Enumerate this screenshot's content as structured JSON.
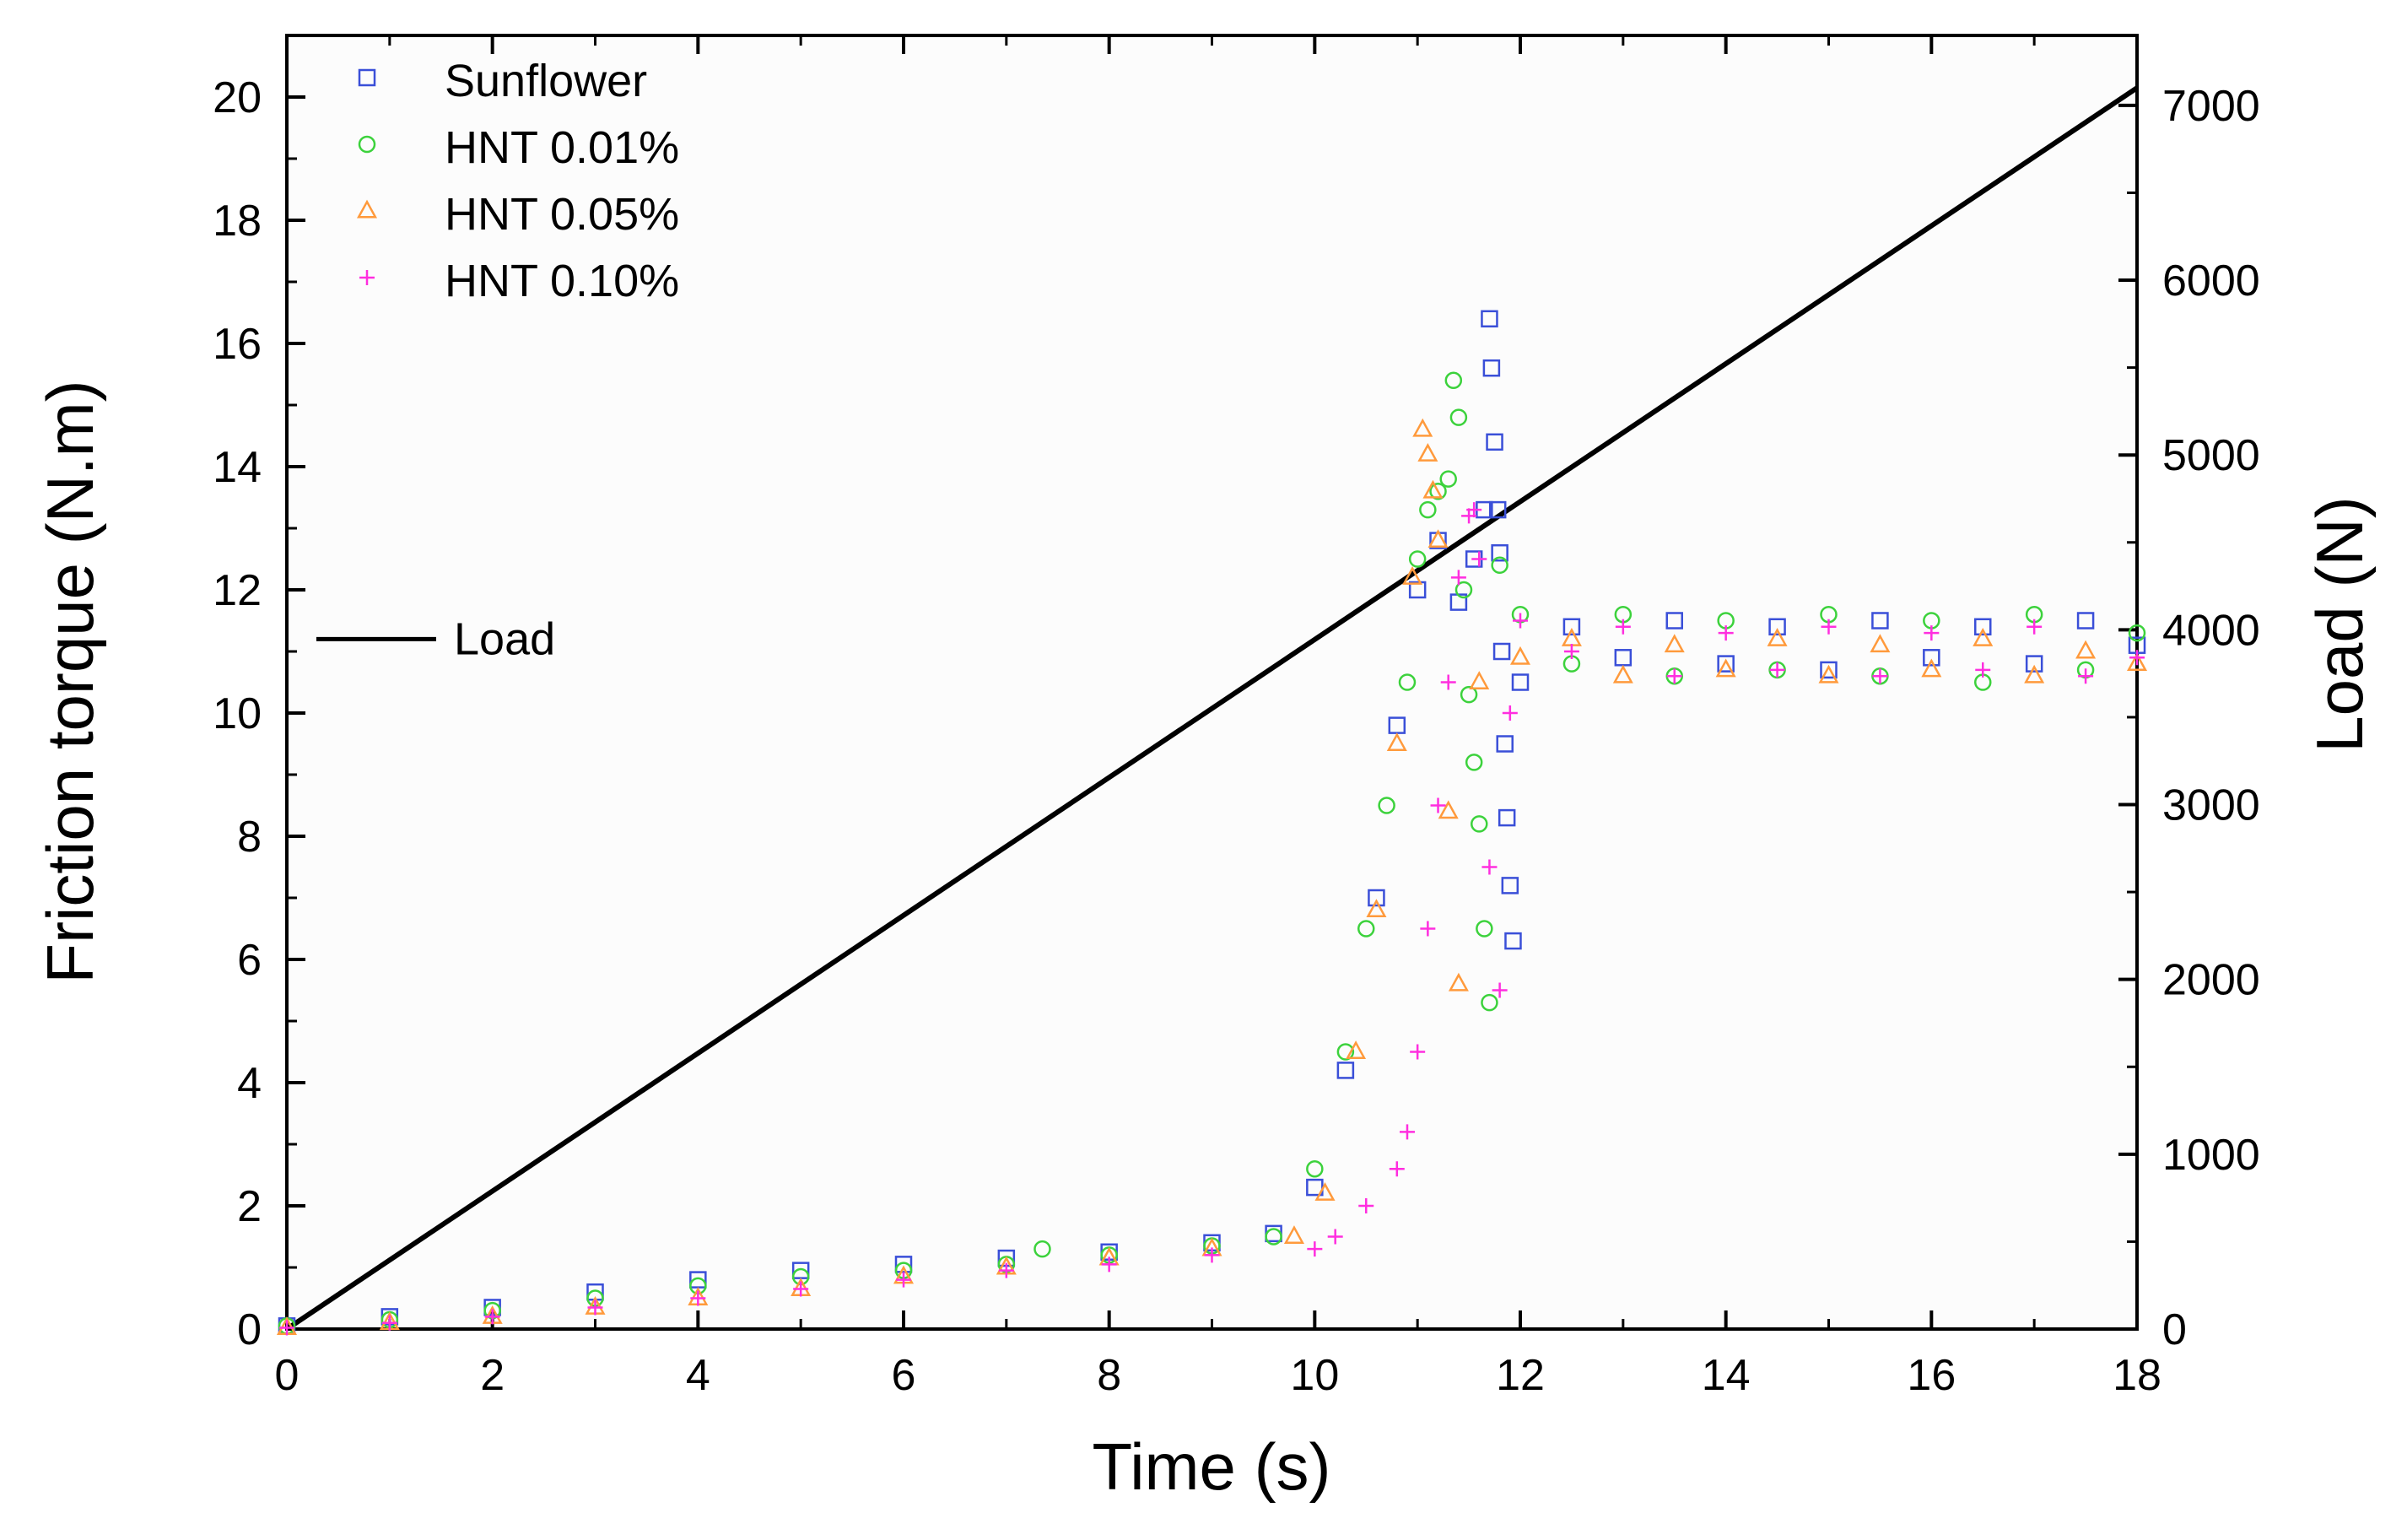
{
  "chart_data": {
    "type": "scatter",
    "title": "",
    "xlabel": "Time (s)",
    "ylabel": "Friction torque (N.m)",
    "y2label": "Load (N)",
    "xlim": [
      0,
      18
    ],
    "ylim": [
      0,
      21
    ],
    "y2lim": [
      0,
      7400
    ],
    "xticks": [
      0,
      2,
      4,
      6,
      8,
      10,
      12,
      14,
      16,
      18
    ],
    "yticks": [
      0,
      2,
      4,
      6,
      8,
      10,
      12,
      14,
      16,
      18,
      20
    ],
    "y2ticks": [
      0,
      1000,
      2000,
      3000,
      4000,
      5000,
      6000,
      7000
    ],
    "grid": false,
    "legend_position": "top-left",
    "series": [
      {
        "name": "Sunflower",
        "marker": "square",
        "color": "#3a4fd8",
        "x": [
          0,
          1,
          2,
          3,
          4,
          5,
          6,
          7,
          8,
          9,
          9.6,
          10.0,
          10.3,
          10.6,
          10.8,
          11.0,
          11.2,
          11.4,
          11.55,
          11.65,
          11.7,
          11.72,
          11.75,
          11.78,
          11.8,
          11.82,
          11.85,
          11.87,
          11.9,
          11.93,
          12.0,
          12.5,
          13.0,
          13.5,
          14.0,
          14.5,
          15.0,
          15.5,
          16.0,
          16.5,
          17.0,
          17.5,
          18.0
        ],
        "y": [
          0.05,
          0.2,
          0.35,
          0.6,
          0.8,
          0.95,
          1.05,
          1.15,
          1.25,
          1.4,
          1.55,
          2.3,
          4.2,
          7.0,
          9.8,
          12.0,
          12.8,
          11.8,
          12.5,
          13.3,
          16.4,
          15.6,
          14.4,
          13.3,
          12.6,
          11.0,
          9.5,
          8.3,
          7.2,
          6.3,
          10.5,
          11.4,
          10.9,
          11.5,
          10.8,
          11.4,
          10.7,
          11.5,
          10.9,
          11.4,
          10.8,
          11.5,
          11.1
        ]
      },
      {
        "name": "HNT 0.01%",
        "marker": "circle",
        "color": "#3cd23c",
        "x": [
          0,
          1,
          2,
          3,
          4,
          5,
          6,
          7,
          7.35,
          8,
          9,
          9.6,
          10.0,
          10.3,
          10.5,
          10.7,
          10.9,
          11.0,
          11.1,
          11.2,
          11.3,
          11.35,
          11.4,
          11.45,
          11.5,
          11.55,
          11.6,
          11.65,
          11.7,
          11.8,
          12.0,
          12.5,
          13.0,
          13.5,
          14.0,
          14.5,
          15.0,
          15.5,
          16.0,
          16.5,
          17.0,
          17.5,
          18.0
        ],
        "y": [
          0.05,
          0.15,
          0.3,
          0.5,
          0.7,
          0.85,
          0.95,
          1.05,
          1.3,
          1.2,
          1.35,
          1.5,
          2.6,
          4.5,
          6.5,
          8.5,
          10.5,
          12.5,
          13.3,
          13.6,
          13.8,
          15.4,
          14.8,
          12.0,
          10.3,
          9.2,
          8.2,
          6.5,
          5.3,
          12.4,
          11.6,
          10.8,
          11.6,
          10.6,
          11.5,
          10.7,
          11.6,
          10.6,
          11.5,
          10.5,
          11.6,
          10.7,
          11.3
        ]
      },
      {
        "name": "HNT 0.05%",
        "marker": "triangle",
        "color": "#ff9a3c",
        "x": [
          0,
          1,
          2,
          3,
          4,
          5,
          6,
          7,
          8,
          9,
          9.8,
          10.1,
          10.4,
          10.6,
          10.8,
          10.95,
          11.05,
          11.1,
          11.15,
          11.2,
          11.3,
          11.4,
          11.6,
          12.0,
          12.5,
          13.0,
          13.5,
          14.0,
          14.5,
          15.0,
          15.5,
          16.0,
          16.5,
          17.0,
          17.5,
          18.0
        ],
        "y": [
          0.02,
          0.1,
          0.2,
          0.35,
          0.5,
          0.65,
          0.85,
          1.0,
          1.15,
          1.3,
          1.5,
          2.2,
          4.5,
          6.8,
          9.5,
          12.2,
          14.6,
          14.2,
          13.6,
          12.8,
          8.4,
          5.6,
          10.5,
          10.9,
          11.2,
          10.6,
          11.1,
          10.7,
          11.2,
          10.6,
          11.1,
          10.7,
          11.2,
          10.6,
          11.0,
          10.8
        ]
      },
      {
        "name": "HNT 0.10%",
        "marker": "plus",
        "color": "#ff2edf",
        "x": [
          0,
          1,
          2,
          3,
          4,
          5,
          6,
          7,
          8,
          9,
          10.0,
          10.2,
          10.5,
          10.8,
          10.9,
          11.0,
          11.1,
          11.2,
          11.3,
          11.4,
          11.5,
          11.55,
          11.6,
          11.7,
          11.8,
          11.9,
          12.0,
          12.5,
          13.0,
          13.5,
          14.0,
          14.5,
          15.0,
          15.5,
          16.0,
          16.5,
          17.0,
          17.5,
          18.0
        ],
        "y": [
          0.02,
          0.1,
          0.2,
          0.35,
          0.5,
          0.65,
          0.8,
          0.95,
          1.05,
          1.2,
          1.3,
          1.5,
          2.0,
          2.6,
          3.2,
          4.5,
          6.5,
          8.5,
          10.5,
          12.2,
          13.2,
          13.3,
          12.5,
          7.5,
          5.5,
          10.0,
          11.5,
          11.0,
          11.4,
          10.6,
          11.3,
          10.7,
          11.4,
          10.6,
          11.3,
          10.7,
          11.4,
          10.6,
          10.9
        ]
      }
    ],
    "load_line": {
      "name": "Load",
      "color": "#000000",
      "x": [
        0,
        18
      ],
      "y": [
        0,
        7100
      ]
    }
  }
}
